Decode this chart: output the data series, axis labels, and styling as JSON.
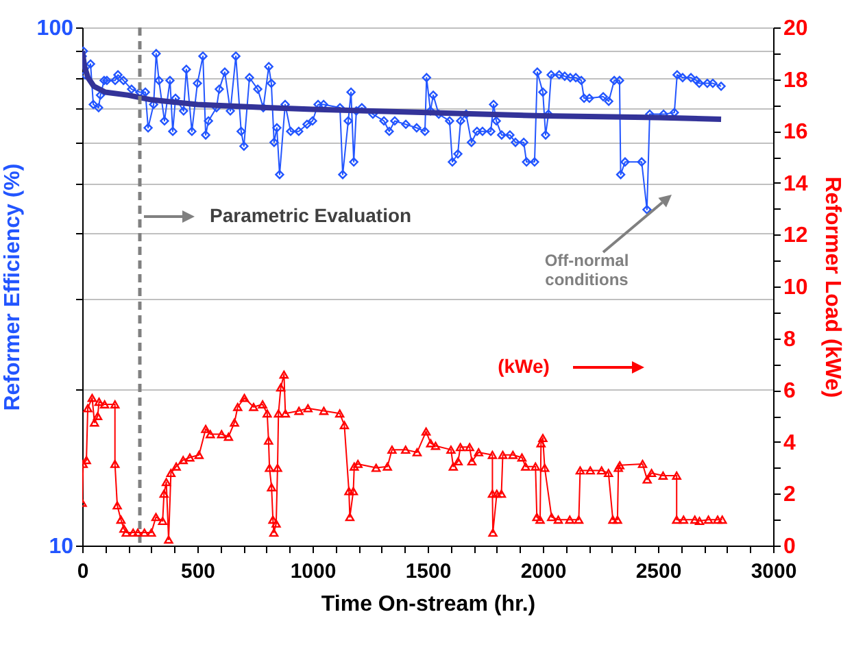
{
  "chart_data": {
    "type": "line",
    "xlabel": "Time On-stream (hr.)",
    "ylabel": "Reformer Efficiency (%)",
    "y2label": "Reformer Load (kWe)",
    "annotations": [
      "Parametric Evaluation",
      "Off-normal conditions",
      "(kWe)"
    ],
    "log": "y",
    "grid": "y",
    "xlim": [
      0,
      3000
    ],
    "xticks": [
      0,
      {
        "value": 100,
        "label": null
      },
      {
        "value": 200,
        "label": null
      },
      {
        "value": 300,
        "label": null
      },
      {
        "value": 400,
        "label": null
      },
      500,
      {
        "value": 600,
        "label": null
      },
      {
        "value": 700,
        "label": null
      },
      {
        "value": 800,
        "label": null
      },
      {
        "value": 900,
        "label": null
      },
      1000,
      {
        "value": 1100,
        "label": null
      },
      {
        "value": 1200,
        "label": null
      },
      {
        "value": 1300,
        "label": null
      },
      {
        "value": 1400,
        "label": null
      },
      1500,
      {
        "value": 1600,
        "label": null
      },
      {
        "value": 1700,
        "label": null
      },
      {
        "value": 1800,
        "label": null
      },
      {
        "value": 1900,
        "label": null
      },
      2000,
      {
        "value": 2100,
        "label": null
      },
      {
        "value": 2200,
        "label": null
      },
      {
        "value": 2300,
        "label": null
      },
      {
        "value": 2400,
        "label": null
      },
      2500,
      {
        "value": 2600,
        "label": null
      },
      {
        "value": 2700,
        "label": null
      },
      {
        "value": 2800,
        "label": null
      },
      {
        "value": 2900,
        "label": null
      },
      3000
    ],
    "ylim": [
      10,
      100
    ],
    "yticks": [
      10,
      {
        "value": 20,
        "label": null
      },
      {
        "value": 30,
        "label": null
      },
      {
        "value": 40,
        "label": null
      },
      {
        "value": 50,
        "label": null
      },
      {
        "value": 60,
        "label": null
      },
      {
        "value": 70,
        "label": null
      },
      {
        "value": 80,
        "label": null
      },
      {
        "value": 90,
        "label": null
      },
      100
    ],
    "y2lim": [
      0,
      20
    ],
    "y2ticks": [
      0,
      {
        "value": 1,
        "label": null
      },
      2,
      {
        "value": 3,
        "label": null
      },
      4,
      {
        "value": 5,
        "label": null
      },
      6,
      {
        "value": 7,
        "label": null
      },
      8,
      {
        "value": 9,
        "label": null
      },
      10,
      {
        "value": 11,
        "label": null
      },
      12,
      {
        "value": 13,
        "label": null
      },
      14,
      {
        "value": 15,
        "label": null
      },
      16,
      {
        "value": 17,
        "label": null
      },
      18,
      {
        "value": 19,
        "label": null
      },
      20
    ],
    "ref_lines": [
      {
        "axis": "x",
        "value": 250,
        "color": "#808080",
        "line_style": "dashed"
      }
    ],
    "series": [
      {
        "color": "#2255ff",
        "marker": "diamond",
        "x": [
          0,
          5,
          12,
          36,
          48,
          71,
          79,
          95,
          107,
          143,
          155,
          179,
          214,
          250,
          274,
          286,
          310,
          321,
          333,
          357,
          381,
          393,
          405,
          440,
          452,
          476,
          500,
          524,
          536,
          548,
          583,
          595,
          619,
          643,
          667,
          690,
          702,
          726,
          762,
          786,
          810,
          821,
          833,
          845,
          857,
          881,
          905,
          940,
          976,
          1000,
          1024,
          1048,
          1119,
          1131,
          1155,
          1167,
          1179,
          1190,
          1214,
          1262,
          1310,
          1333,
          1357,
          1405,
          1452,
          1488,
          1495,
          1512,
          1524,
          1548,
          1595,
          1607,
          1631,
          1643,
          1667,
          1690,
          1714,
          1738,
          1774,
          1786,
          1798,
          1821,
          1857,
          1881,
          1917,
          1929,
          1964,
          1976,
          2000,
          2012,
          2024,
          2036,
          2071,
          2095,
          2119,
          2143,
          2167,
          2179,
          2202,
          2262,
          2286,
          2310,
          2333,
          2338,
          2357,
          2429,
          2452,
          2464,
          2524,
          2571,
          2583,
          2607,
          2643,
          2667,
          2679,
          2714,
          2738,
          2774
        ],
        "values": [
          88,
          90,
          81,
          85,
          71,
          70,
          74,
          79,
          79,
          79,
          81,
          79,
          76,
          75,
          75,
          64,
          71,
          89,
          79,
          66,
          79,
          63,
          73,
          69,
          83,
          63,
          78,
          88,
          62,
          66,
          70,
          76,
          82,
          69,
          88,
          63,
          59,
          80,
          76,
          70,
          84,
          78,
          60,
          64,
          52,
          71,
          63,
          63,
          65,
          66,
          71,
          71,
          70,
          52,
          66,
          75,
          55,
          69,
          70,
          68,
          66,
          63,
          66,
          65,
          64,
          63,
          80,
          69,
          74,
          68,
          66,
          55,
          57,
          66,
          68,
          60,
          63,
          63,
          63,
          71,
          66,
          62,
          62,
          60,
          60,
          55,
          55,
          82,
          75,
          62,
          68,
          81,
          81,
          80.5,
          80,
          80,
          79,
          73,
          73,
          73.5,
          72,
          79,
          79,
          52,
          55,
          55,
          44.5,
          68,
          68,
          68.5,
          81,
          80,
          80,
          79,
          78,
          78,
          78,
          77
        ]
      },
      {
        "color": "#333399",
        "marker": "none",
        "x": [
          0,
          10,
          25,
          50,
          100,
          200,
          300,
          500,
          800,
          1000,
          1500,
          2000,
          2500,
          2774
        ],
        "values": [
          90,
          84,
          80,
          77,
          75,
          74,
          72.5,
          71,
          70,
          69.5,
          68.5,
          67.5,
          67,
          66.5
        ]
      },
      {
        "axis": "y2",
        "color": "#ff0000",
        "marker": "triangle",
        "x": [
          0,
          4,
          18,
          24,
          43,
          53,
          67,
          73,
          97,
          142,
          142,
          152,
          168,
          181,
          191,
          221,
          241,
          270,
          300,
          320,
          349,
          355,
          365,
          375,
          385,
          408,
          438,
          467,
          507,
          536,
          556,
          605,
          635,
          661,
          675,
          704,
          744,
          783,
          803,
          809,
          813,
          822,
          828,
          832,
          842,
          848,
          852,
          862,
          876,
          882,
          941,
          980,
          1049,
          1118,
          1138,
          1158,
          1162,
          1177,
          1181,
          1197,
          1276,
          1325,
          1345,
          1404,
          1454,
          1493,
          1513,
          1534,
          1601,
          1611,
          1632,
          1642,
          1682,
          1692,
          1721,
          1781,
          1781,
          1783,
          1800,
          1820,
          1826,
          1870,
          1909,
          1925,
          1968,
          1974,
          1988,
          1992,
          2000,
          2008,
          2038,
          2067,
          2117,
          2156,
          2162,
          2206,
          2255,
          2285,
          2304,
          2324,
          2328,
          2334,
          2433,
          2453,
          2472,
          2522,
          2581,
          2581,
          2611,
          2660,
          2680,
          2719,
          2759,
          2779
        ],
        "values": [
          1.65,
          3.15,
          3.3,
          5.3,
          5.7,
          4.75,
          5.0,
          5.55,
          5.45,
          5.45,
          3.15,
          1.55,
          1.0,
          0.65,
          0.5,
          0.5,
          0.5,
          0.5,
          0.5,
          1.1,
          0.95,
          2.0,
          2.45,
          0.23,
          2.8,
          3.05,
          3.3,
          3.4,
          3.5,
          4.5,
          4.3,
          4.3,
          4.2,
          4.75,
          5.35,
          5.7,
          5.35,
          5.45,
          5.1,
          4.05,
          3.0,
          2.25,
          1.0,
          0.5,
          0.85,
          3.0,
          5.1,
          6.1,
          6.6,
          5.1,
          5.2,
          5.3,
          5.2,
          5.1,
          4.65,
          2.1,
          1.1,
          2.1,
          3.05,
          3.15,
          3.0,
          3.05,
          3.7,
          3.7,
          3.6,
          4.4,
          3.95,
          3.85,
          3.7,
          3.05,
          3.25,
          3.8,
          3.8,
          3.25,
          3.6,
          3.5,
          2.0,
          0.5,
          2.0,
          2.0,
          3.5,
          3.5,
          3.4,
          3.05,
          3.05,
          1.1,
          1.0,
          3.95,
          4.15,
          3.0,
          1.1,
          1.0,
          1.0,
          1.0,
          2.9,
          2.9,
          2.9,
          2.8,
          1.0,
          1.0,
          3.0,
          3.1,
          3.15,
          2.55,
          2.8,
          2.7,
          2.7,
          1.0,
          1.0,
          1.0,
          0.95,
          1.0,
          1.0,
          1.0
        ]
      }
    ]
  }
}
